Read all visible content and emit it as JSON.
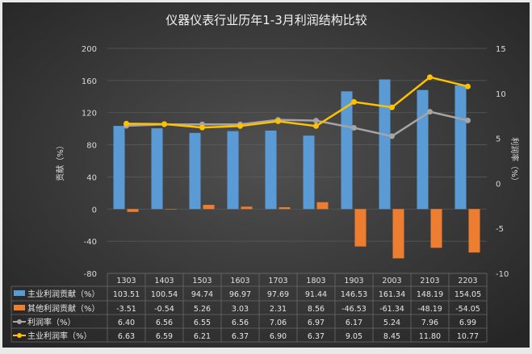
{
  "chart_data": {
    "type": "bar",
    "title": "仪器仪表行业历年1-3月利润结构比较",
    "ylabel": "贡献（%）",
    "y2label": "利润率（%）",
    "ylim": [
      -80,
      200
    ],
    "yticks": [
      -80,
      -40,
      0,
      40,
      80,
      120,
      160,
      200
    ],
    "y2lim": [
      -10,
      15
    ],
    "y2ticks": [
      -10,
      -5,
      0,
      5,
      10,
      15
    ],
    "grid": true,
    "legend": "table-below",
    "categories": [
      "1303",
      "1403",
      "1503",
      "1603",
      "1703",
      "1803",
      "1903",
      "2003",
      "2103",
      "2203"
    ],
    "series": [
      {
        "name": "主业利润贡献（%）",
        "type": "bar",
        "axis": "left",
        "color": "#5b9bd5",
        "values": [
          103.51,
          100.54,
          94.74,
          96.97,
          97.69,
          91.44,
          146.53,
          161.34,
          148.19,
          154.05
        ],
        "labels": [
          "103.51",
          "100.54",
          "94.74",
          "96.97",
          "97.69",
          "91.44",
          "146.53",
          "161.34",
          "148.19",
          "154.05"
        ]
      },
      {
        "name": "其他利润贡献（%）",
        "type": "bar",
        "axis": "left",
        "color": "#ed7d31",
        "values": [
          -3.51,
          -0.54,
          5.26,
          3.03,
          2.31,
          8.56,
          -46.53,
          -61.34,
          -48.19,
          -54.05
        ],
        "labels": [
          "-3.51",
          "-0.54",
          "5.26",
          "3.03",
          "2.31",
          "8.56",
          "-46.53",
          "-61.34",
          "-48.19",
          "-54.05"
        ]
      },
      {
        "name": "利润率（%）",
        "type": "line",
        "axis": "right",
        "color": "#a5a5a5",
        "values": [
          6.4,
          6.56,
          6.55,
          6.56,
          7.06,
          6.97,
          6.17,
          5.24,
          7.96,
          6.99
        ],
        "labels": [
          "6.40",
          "6.56",
          "6.55",
          "6.56",
          "7.06",
          "6.97",
          "6.17",
          "5.24",
          "7.96",
          "6.99"
        ]
      },
      {
        "name": "主业利润率（%）",
        "type": "line",
        "axis": "right",
        "color": "#ffc000",
        "values": [
          6.63,
          6.59,
          6.21,
          6.37,
          6.9,
          6.37,
          9.05,
          8.45,
          11.8,
          10.77
        ],
        "labels": [
          "6.63",
          "6.59",
          "6.21",
          "6.37",
          "6.90",
          "6.37",
          "9.05",
          "8.45",
          "11.80",
          "10.77"
        ]
      }
    ]
  }
}
